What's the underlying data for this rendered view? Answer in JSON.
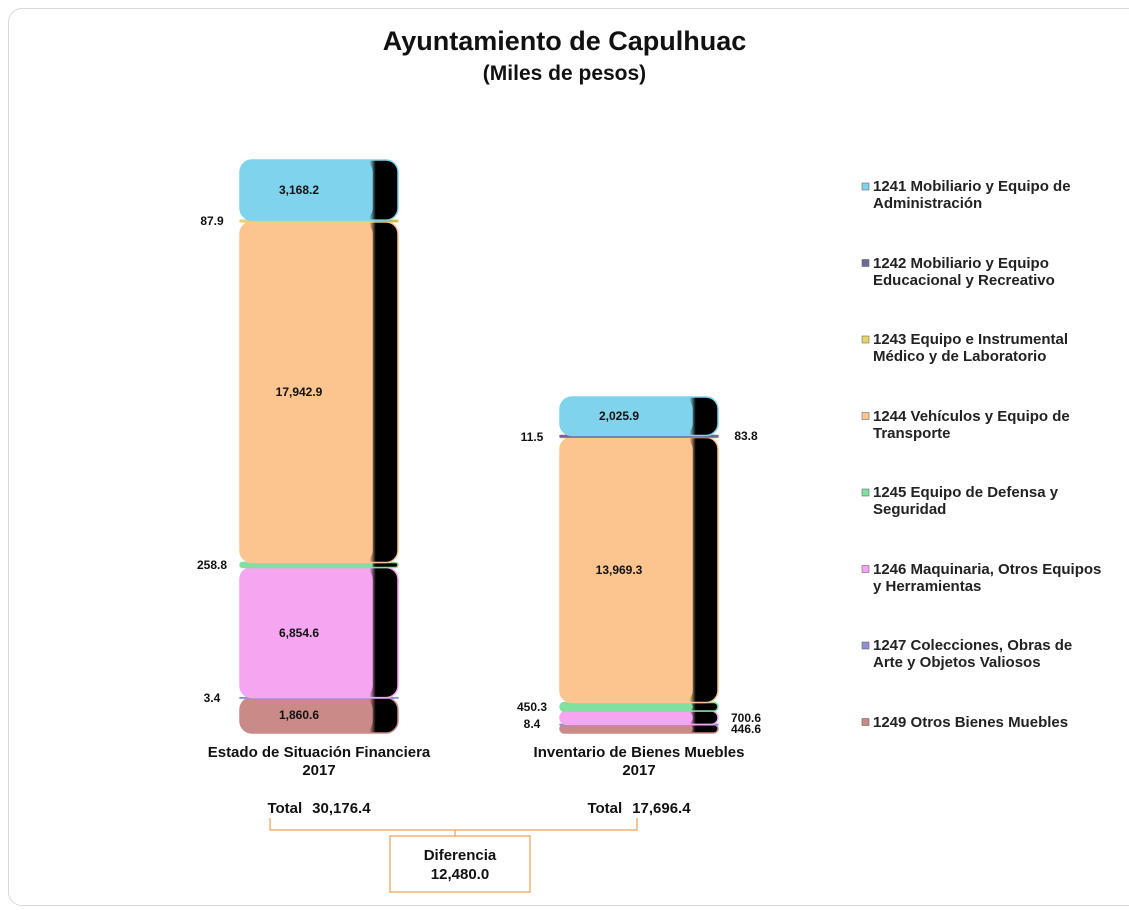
{
  "chart_data": {
    "type": "stacked-bar",
    "title": "Ayuntamiento de Capulhuac",
    "subtitle": "(Miles de pesos)",
    "categories": [
      "Estado de Situación Financiera\n2017",
      "Inventario de Bienes Muebles\n2017"
    ],
    "series": [
      {
        "name": "1241 Mobiliario y Equipo de\nAdministración",
        "color": "#7fd3ec",
        "values": [
          3168.2,
          2025.9
        ],
        "value_labels": [
          "3,168.2",
          "2,025.9"
        ]
      },
      {
        "name": "1242 Mobiliario y Equipo\nEducacional y Recreativo",
        "color": "#6b6b9a",
        "values": [
          null,
          83.8
        ],
        "value_labels": [
          null,
          "83.8"
        ]
      },
      {
        "name": "1243 Equipo e Instrumental\nMédico y de Laboratorio",
        "color": "#e8d36b",
        "values": [
          87.9,
          11.5
        ],
        "value_labels": [
          "87.9",
          "11.5"
        ]
      },
      {
        "name": "1244 Vehículos y Equipo de\nTransporte",
        "color": "#fcc48f",
        "values": [
          17942.9,
          13969.3
        ],
        "value_labels": [
          "17,942.9",
          "13,969.3"
        ]
      },
      {
        "name": "1245 Equipo de Defensa y\nSeguridad",
        "color": "#7fe0a0",
        "values": [
          258.8,
          450.3
        ],
        "value_labels": [
          "258.8",
          "450.3"
        ]
      },
      {
        "name": "1246 Maquinaria, Otros Equipos\ny Herramientas",
        "color": "#f6a6f0",
        "values": [
          6854.6,
          700.6
        ],
        "value_labels": [
          "6,854.6",
          "700.6"
        ]
      },
      {
        "name": "1247 Colecciones, Obras de\nArte y Objetos Valiosos",
        "color": "#8f8fd8",
        "values": [
          3.4,
          8.4
        ],
        "value_labels": [
          "3.4",
          "8.4"
        ]
      },
      {
        "name": "1249 Otros Bienes Muebles",
        "color": "#c98a88",
        "values": [
          1860.6,
          446.6
        ],
        "value_labels": [
          "1,860.6",
          "446.6"
        ]
      }
    ],
    "total_label": "Total",
    "totals": [
      30176.4,
      17696.4
    ],
    "total_value_labels": [
      "30,176.4",
      "17,696.4"
    ],
    "difference_label": "Diferencia",
    "difference": 12480.0,
    "difference_value_label": "12,480.0"
  }
}
